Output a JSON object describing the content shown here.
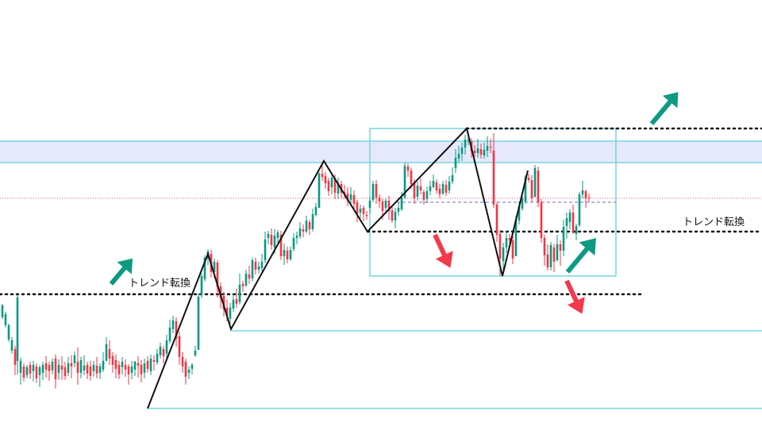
{
  "chart_data": {
    "type": "candlestick",
    "grid": false,
    "legend": "none",
    "colors": {
      "up": "#089981",
      "down": "#f23645",
      "zigzag": "#111111",
      "box": "#5fd0dc",
      "zone_fill": "#e6e9fb",
      "arrow_up": "#0d9a82",
      "arrow_down": "#f23a4a",
      "current_price_line": "#e06060"
    },
    "annotations": [
      {
        "id": "left",
        "text": "トレンド転換"
      },
      {
        "id": "right",
        "text": "トレンド転換"
      }
    ],
    "zigzag": [
      [
        186,
        515
      ],
      [
        262,
        320
      ],
      [
        291,
        415
      ],
      [
        408,
        203
      ],
      [
        463,
        292
      ],
      [
        588,
        162
      ],
      [
        633,
        348
      ],
      [
        665,
        215
      ]
    ],
    "candles": [
      [
        3,
        400,
        385,
        402,
        383
      ],
      [
        7,
        410,
        396,
        413,
        393
      ],
      [
        11,
        428,
        410,
        431,
        408
      ],
      [
        15,
        442,
        429,
        446,
        425
      ],
      [
        19,
        440,
        460,
        473,
        436
      ],
      [
        22,
        455,
        375,
        472,
        372
      ],
      [
        26,
        470,
        455,
        485,
        451
      ],
      [
        30,
        462,
        476,
        481,
        458
      ],
      [
        34,
        473,
        463,
        477,
        460
      ],
      [
        38,
        460,
        471,
        478,
        456
      ],
      [
        42,
        468,
        460,
        481,
        455
      ],
      [
        46,
        462,
        477,
        483,
        458
      ],
      [
        50,
        473,
        463,
        488,
        460
      ],
      [
        54,
        470,
        460,
        479,
        456
      ],
      [
        58,
        458,
        466,
        476,
        449
      ],
      [
        62,
        460,
        468,
        480,
        456
      ],
      [
        66,
        467,
        456,
        472,
        452
      ],
      [
        70,
        452,
        478,
        490,
        447
      ],
      [
        74,
        470,
        460,
        479,
        453
      ],
      [
        78,
        461,
        466,
        479,
        449
      ],
      [
        82,
        463,
        474,
        479,
        456
      ],
      [
        86,
        470,
        458,
        474,
        450
      ],
      [
        90,
        458,
        462,
        477,
        448
      ],
      [
        94,
        458,
        448,
        463,
        443
      ],
      [
        98,
        456,
        470,
        485,
        438
      ],
      [
        102,
        470,
        454,
        477,
        450
      ],
      [
        106,
        467,
        461,
        473,
        448
      ],
      [
        110,
        460,
        471,
        478,
        456
      ],
      [
        114,
        462,
        474,
        480,
        455
      ],
      [
        118,
        468,
        460,
        475,
        455
      ],
      [
        122,
        461,
        471,
        477,
        450
      ],
      [
        126,
        470,
        462,
        478,
        458
      ],
      [
        130,
        466,
        455,
        469,
        444
      ],
      [
        134,
        455,
        434,
        453,
        425
      ],
      [
        138,
        440,
        452,
        460,
        429
      ],
      [
        142,
        449,
        460,
        470,
        444
      ],
      [
        146,
        454,
        465,
        477,
        447
      ],
      [
        150,
        460,
        472,
        478,
        455
      ],
      [
        154,
        463,
        456,
        472,
        450
      ],
      [
        158,
        460,
        466,
        475,
        453
      ],
      [
        162,
        462,
        472,
        485,
        459
      ],
      [
        166,
        470,
        462,
        478,
        455
      ],
      [
        170,
        466,
        456,
        474,
        455
      ],
      [
        174,
        458,
        461,
        476,
        449
      ],
      [
        178,
        460,
        472,
        482,
        454
      ],
      [
        182,
        470,
        458,
        477,
        452
      ],
      [
        186,
        455,
        465,
        470,
        449
      ],
      [
        190,
        468,
        452,
        473,
        447
      ],
      [
        194,
        454,
        456,
        467,
        448
      ],
      [
        198,
        457,
        446,
        460,
        440
      ],
      [
        202,
        448,
        437,
        452,
        432
      ],
      [
        206,
        440,
        449,
        458,
        436
      ],
      [
        210,
        446,
        429,
        452,
        422
      ],
      [
        214,
        430,
        413,
        433,
        403
      ],
      [
        218,
        415,
        404,
        420,
        398
      ],
      [
        222,
        405,
        427,
        437,
        400
      ],
      [
        226,
        424,
        450,
        460,
        418
      ],
      [
        230,
        450,
        462,
        470,
        444
      ],
      [
        234,
        456,
        475,
        485,
        452
      ],
      [
        238,
        470,
        466,
        478,
        462
      ],
      [
        242,
        465,
        460,
        472,
        458
      ],
      [
        246,
        448,
        442,
        450,
        436
      ],
      [
        250,
        441,
        374,
        441,
        370
      ],
      [
        254,
        372,
        348,
        376,
        345
      ],
      [
        258,
        352,
        325,
        355,
        322
      ],
      [
        262,
        326,
        317,
        334,
        314
      ],
      [
        266,
        320,
        343,
        350,
        315
      ],
      [
        270,
        343,
        330,
        351,
        326
      ],
      [
        274,
        331,
        362,
        375,
        328
      ],
      [
        278,
        361,
        376,
        389,
        356
      ],
      [
        282,
        373,
        390,
        399,
        368
      ],
      [
        286,
        388,
        398,
        405,
        378
      ],
      [
        290,
        402,
        388,
        408,
        382
      ],
      [
        294,
        389,
        378,
        393,
        371
      ],
      [
        298,
        377,
        383,
        388,
        364
      ],
      [
        302,
        381,
        359,
        384,
        345
      ],
      [
        306,
        358,
        361,
        368,
        354
      ],
      [
        310,
        360,
        345,
        362,
        340
      ],
      [
        314,
        346,
        351,
        358,
        335
      ],
      [
        318,
        351,
        328,
        355,
        325
      ],
      [
        322,
        330,
        340,
        346,
        325
      ],
      [
        326,
        340,
        336,
        345,
        330
      ],
      [
        330,
        338,
        330,
        342,
        320
      ],
      [
        334,
        328,
        302,
        332,
        292
      ],
      [
        338,
        300,
        295,
        308,
        291
      ],
      [
        342,
        296,
        309,
        315,
        288
      ],
      [
        346,
        312,
        297,
        320,
        289
      ],
      [
        350,
        300,
        293,
        307,
        290
      ],
      [
        354,
        296,
        323,
        328,
        291
      ],
      [
        358,
        323,
        315,
        334,
        307
      ],
      [
        362,
        316,
        327,
        332,
        311
      ],
      [
        366,
        327,
        315,
        329,
        311
      ],
      [
        370,
        314,
        300,
        317,
        294
      ],
      [
        374,
        300,
        297,
        308,
        292
      ],
      [
        378,
        298,
        288,
        301,
        280
      ],
      [
        382,
        289,
        292,
        299,
        283
      ],
      [
        386,
        292,
        278,
        294,
        272
      ],
      [
        390,
        280,
        289,
        296,
        277
      ],
      [
        394,
        289,
        270,
        292,
        263
      ],
      [
        398,
        271,
        261,
        273,
        256
      ],
      [
        402,
        262,
        219,
        262,
        217
      ],
      [
        406,
        219,
        223,
        228,
        205
      ],
      [
        410,
        222,
        231,
        238,
        217
      ],
      [
        414,
        228,
        241,
        247,
        224
      ],
      [
        418,
        236,
        224,
        245,
        220
      ],
      [
        422,
        225,
        243,
        251,
        220
      ],
      [
        426,
        244,
        231,
        251,
        224
      ],
      [
        430,
        232,
        243,
        250,
        228
      ],
      [
        434,
        242,
        245,
        251,
        233
      ],
      [
        438,
        244,
        253,
        260,
        236
      ],
      [
        442,
        252,
        245,
        260,
        236
      ],
      [
        446,
        246,
        257,
        263,
        240
      ],
      [
        450,
        255,
        270,
        280,
        252
      ],
      [
        454,
        268,
        263,
        275,
        258
      ],
      [
        458,
        262,
        270,
        279,
        259
      ],
      [
        462,
        271,
        271,
        277,
        266
      ],
      [
        466,
        262,
        253,
        270,
        248
      ],
      [
        470,
        252,
        232,
        255,
        228
      ],
      [
        474,
        232,
        249,
        257,
        227
      ],
      [
        478,
        249,
        254,
        262,
        245
      ],
      [
        482,
        254,
        266,
        277,
        251
      ],
      [
        486,
        262,
        253,
        267,
        250
      ],
      [
        490,
        253,
        266,
        277,
        247
      ],
      [
        494,
        265,
        278,
        281,
        260
      ],
      [
        498,
        278,
        267,
        288,
        262
      ],
      [
        502,
        267,
        262,
        272,
        255
      ],
      [
        506,
        264,
        249,
        266,
        242
      ],
      [
        510,
        249,
        209,
        251,
        205
      ],
      [
        514,
        210,
        215,
        223,
        206
      ],
      [
        518,
        215,
        232,
        238,
        212
      ],
      [
        522,
        230,
        250,
        257,
        226
      ],
      [
        526,
        248,
        234,
        253,
        229
      ],
      [
        530,
        235,
        240,
        245,
        225
      ],
      [
        534,
        242,
        252,
        258,
        239
      ],
      [
        538,
        251,
        241,
        256,
        235
      ],
      [
        542,
        241,
        235,
        246,
        228
      ],
      [
        546,
        236,
        228,
        237,
        220
      ],
      [
        550,
        230,
        240,
        244,
        226
      ],
      [
        554,
        238,
        245,
        250,
        232
      ],
      [
        558,
        244,
        232,
        246,
        228
      ],
      [
        562,
        233,
        243,
        247,
        227
      ],
      [
        566,
        240,
        229,
        244,
        222
      ],
      [
        570,
        229,
        221,
        232,
        211
      ],
      [
        574,
        212,
        199,
        218,
        188
      ],
      [
        578,
        200,
        194,
        205,
        184
      ],
      [
        582,
        194,
        186,
        203,
        180
      ],
      [
        586,
        186,
        176,
        195,
        170
      ],
      [
        590,
        178,
        177,
        183,
        167
      ],
      [
        594,
        178,
        191,
        199,
        174
      ],
      [
        598,
        190,
        193,
        198,
        183
      ],
      [
        602,
        193,
        187,
        199,
        175
      ],
      [
        606,
        188,
        195,
        200,
        181
      ],
      [
        610,
        196,
        189,
        200,
        180
      ],
      [
        614,
        190,
        184,
        198,
        172
      ],
      [
        618,
        185,
        186,
        193,
        175
      ],
      [
        622,
        190,
        258,
        262,
        168
      ],
      [
        626,
        258,
        296,
        305,
        255
      ],
      [
        630,
        295,
        326,
        348,
        290
      ],
      [
        634,
        329,
        312,
        346,
        306
      ],
      [
        638,
        312,
        300,
        319,
        291
      ],
      [
        642,
        300,
        303,
        308,
        295
      ],
      [
        646,
        303,
        326,
        333,
        290
      ],
      [
        650,
        323,
        277,
        323,
        272
      ],
      [
        654,
        278,
        260,
        283,
        254
      ],
      [
        658,
        263,
        250,
        266,
        245
      ],
      [
        662,
        254,
        223,
        257,
        221
      ],
      [
        666,
        224,
        227,
        230,
        219
      ],
      [
        670,
        227,
        250,
        255,
        221
      ],
      [
        674,
        248,
        212,
        249,
        208
      ],
      [
        678,
        215,
        255,
        261,
        210
      ],
      [
        682,
        255,
        300,
        306,
        251
      ],
      [
        686,
        300,
        322,
        335,
        296
      ],
      [
        690,
        321,
        337,
        341,
        308
      ],
      [
        694,
        337,
        309,
        341,
        305
      ],
      [
        698,
        312,
        330,
        343,
        308
      ],
      [
        702,
        328,
        308,
        330,
        296
      ],
      [
        706,
        308,
        316,
        335,
        303
      ],
      [
        710,
        316,
        286,
        323,
        277
      ],
      [
        714,
        285,
        275,
        301,
        268
      ],
      [
        718,
        280,
        268,
        289,
        264
      ],
      [
        722,
        268,
        292,
        295,
        258
      ],
      [
        726,
        295,
        285,
        303,
        282
      ],
      [
        730,
        284,
        245,
        286,
        242
      ],
      [
        734,
        245,
        240,
        250,
        228
      ],
      [
        738,
        241,
        250,
        262,
        239
      ],
      [
        742,
        249,
        250,
        255,
        244
      ]
    ]
  }
}
